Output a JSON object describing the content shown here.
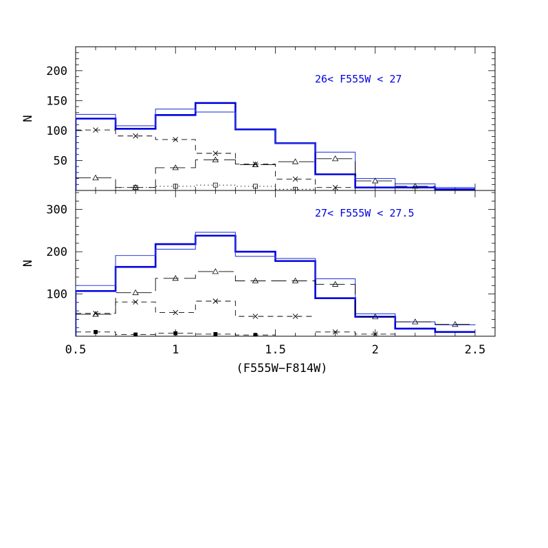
{
  "figure": {
    "xlabel": "(F555W−F814W)"
  },
  "colors": {
    "model": "#0000dd",
    "obs": "#2b3ee0",
    "components": "#000000"
  },
  "chart_data": [
    {
      "type": "step-histogram",
      "panel": "top",
      "label": "26< F555W < 27",
      "xlabel": "(F555W−F814W)",
      "ylabel": "N",
      "xlim": [
        0.5,
        2.6
      ],
      "ylim": [
        0,
        240
      ],
      "yticks": [
        50,
        100,
        150,
        200
      ],
      "bin_edges": [
        0.5,
        0.7,
        0.9,
        1.1,
        1.3,
        1.5,
        1.7,
        1.9,
        2.1,
        2.3,
        2.5
      ],
      "series": [
        {
          "style": "thick-solid",
          "values": [
            120,
            103,
            126,
            146,
            102,
            79,
            27,
            5,
            5,
            2,
            null
          ]
        },
        {
          "style": "thin-solid",
          "values": [
            127,
            108,
            136,
            131,
            103,
            79,
            64,
            20,
            11,
            5,
            5
          ]
        },
        {
          "style": "dash-cross",
          "marker": "cross",
          "values": [
            101,
            91,
            85,
            62,
            44,
            19,
            5,
            null,
            null,
            null,
            null
          ]
        },
        {
          "style": "longdash-triangle",
          "marker": "triangle",
          "values": [
            21,
            5,
            38,
            51,
            43,
            48,
            53,
            16,
            7,
            null,
            null
          ]
        },
        {
          "style": "dotted-square",
          "marker": "square",
          "values": [
            null,
            5,
            7,
            9,
            7,
            2,
            null,
            null,
            null,
            null,
            null
          ]
        }
      ]
    },
    {
      "type": "step-histogram",
      "panel": "bottom",
      "label": "27< F555W < 27.5",
      "xlabel": "(F555W−F814W)",
      "ylabel": "N",
      "xlim": [
        0.5,
        2.6
      ],
      "ylim": [
        0,
        345
      ],
      "yticks": [
        100,
        200,
        300
      ],
      "xticks": [
        0.5,
        1,
        1.5,
        2,
        2.5
      ],
      "xticklabels": [
        "0.5",
        "1",
        "1.5",
        "2",
        "2.5"
      ],
      "bin_edges": [
        0.5,
        0.7,
        0.9,
        1.1,
        1.3,
        1.5,
        1.7,
        1.9,
        2.1,
        2.3,
        2.5
      ],
      "series": [
        {
          "style": "thick-solid",
          "values": [
            107,
            164,
            218,
            238,
            200,
            178,
            90,
            46,
            18,
            10,
            null
          ]
        },
        {
          "style": "thin-solid",
          "values": [
            120,
            191,
            206,
            246,
            189,
            184,
            136,
            53,
            34,
            27,
            26
          ]
        },
        {
          "style": "longdash-triangle",
          "marker": "triangle",
          "values": [
            52,
            103,
            137,
            153,
            131,
            131,
            123,
            46,
            34,
            28,
            null
          ]
        },
        {
          "style": "dash-cross",
          "marker": "cross",
          "values": [
            54,
            81,
            56,
            83,
            47,
            47,
            null,
            null,
            null,
            null,
            null
          ]
        },
        {
          "style": "dash-star",
          "marker": "star",
          "values": [
            null,
            null,
            null,
            null,
            null,
            null,
            10,
            5,
            null,
            null,
            null
          ]
        },
        {
          "style": "dash-filled-square",
          "marker": "filled-square",
          "values": [
            10,
            4,
            7,
            5,
            3,
            null,
            null,
            null,
            null,
            null,
            null
          ]
        }
      ]
    }
  ]
}
